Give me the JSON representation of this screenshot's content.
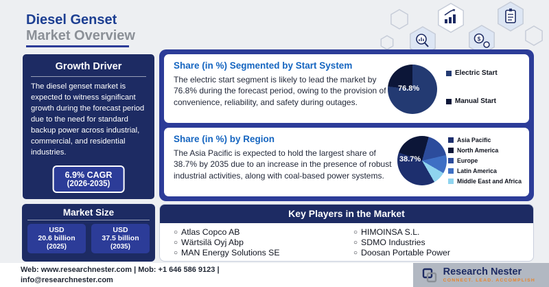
{
  "header": {
    "title_line1": "Diesel Genset",
    "title_line2": "Market Overview"
  },
  "growth_driver": {
    "title": "Growth Driver",
    "text": "The diesel genset market is expected to witness significant growth during the forecast period due to the need for standard backup power across industrial, commercial, and residential industries.",
    "cagr_value": "6.9% CAGR",
    "cagr_period": "(2026-2035)"
  },
  "market_size": {
    "title": "Market Size",
    "values": [
      {
        "currency": "USD",
        "amount": "20.6 billion",
        "year": "(2025)"
      },
      {
        "currency": "USD",
        "amount": "37.5 billion",
        "year": "(2035)"
      }
    ]
  },
  "cards": {
    "start_system": {
      "heading": "Share (in %) Segmented by Start System",
      "body": "The electric start segment is likely to lead the market by 76.8% during the forecast period, owing to the provision of convenience, reliability, and safety during outages."
    },
    "region": {
      "heading": "Share (in %) by Region",
      "body": "The Asia Pacific is expected to hold the largest share of 38.7% by 2035 due to an increase in the presence of robust industrial activities, along with coal-based power systems."
    }
  },
  "key_players": {
    "title": "Key Players in the Market",
    "col1": [
      "Atlas Copco AB",
      "Wärtsilä Oyj Abp",
      "MAN Energy Solutions SE"
    ],
    "col2": [
      "HIMOINSA S.L.",
      "SDMO Industries",
      "Doosan Portable Power"
    ]
  },
  "footer": {
    "contact_line1": "Web: www.researchnester.com | Mob: +1 646 586 9123 |",
    "contact_line2": "info@researchnester.com",
    "brand_name": "Research Nester",
    "brand_tagline": "Connect. Lead. Accomplish"
  },
  "colors": {
    "navy": "#1d2b63",
    "royal_blue": "#2c3c98",
    "heading_blue": "#1565c0",
    "title_blue": "#1d3f92",
    "title_gray": "#8b9097",
    "accent_cyan": "#8fd4ef"
  },
  "chart_data": [
    {
      "type": "pie",
      "title": "Share (in %) Segmented by Start System",
      "label": "76.8%",
      "start_angle_deg": 0,
      "legend_position": "right",
      "series": [
        {
          "name": "Electric Start",
          "value": 76.8,
          "color": "#233a72"
        },
        {
          "name": "Manual Start",
          "value": 23.2,
          "color": "#0c1638"
        }
      ]
    },
    {
      "type": "pie",
      "title": "Share (in %) by Region",
      "label": "38.7%",
      "start_angle_deg": 150,
      "legend_position": "right",
      "series": [
        {
          "name": "Asia Pacific",
          "value": 38.7,
          "color": "#1d2f6e"
        },
        {
          "name": "North America",
          "value": 24.0,
          "color": "#0c1638"
        },
        {
          "name": "Europe",
          "value": 17.0,
          "color": "#2c4c9c"
        },
        {
          "name": "Latin America",
          "value": 12.0,
          "color": "#3e6fc4"
        },
        {
          "name": "Middle East and Africa",
          "value": 8.3,
          "color": "#8fd4ef"
        }
      ]
    }
  ]
}
